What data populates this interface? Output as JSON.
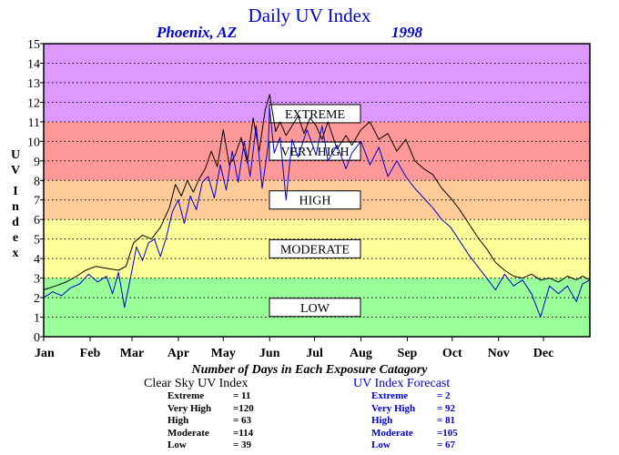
{
  "header": {
    "title": "Daily UV Index",
    "location": "Phoenix, AZ",
    "year": "1998"
  },
  "ylabel_letters": [
    "U",
    "V",
    "I",
    "n",
    "d",
    "e",
    "x"
  ],
  "categories": [
    {
      "label": "EXTREME",
      "min": 11,
      "max": 15,
      "color": "#dd99ff"
    },
    {
      "label": "VERY HIGH",
      "min": 8,
      "max": 11,
      "color": "#ff9999"
    },
    {
      "label": "HIGH",
      "min": 6,
      "max": 8,
      "color": "#ffcc99"
    },
    {
      "label": "MODERATE",
      "min": 3,
      "max": 6,
      "color": "#ffff99"
    },
    {
      "label": "LOW",
      "min": 0,
      "max": 3,
      "color": "#99ff99"
    }
  ],
  "chart_data": {
    "type": "line",
    "title": "Daily UV Index",
    "ylim": [
      0,
      15
    ],
    "yticks": [
      0,
      1,
      2,
      3,
      4,
      5,
      6,
      7,
      8,
      9,
      10,
      11,
      12,
      13,
      14,
      15
    ],
    "xlim": [
      0,
      365
    ],
    "x_tick_labels": [
      "Jan",
      "Feb",
      "Mar",
      "Apr",
      "May",
      "Jun",
      "Jul",
      "Aug",
      "Sep",
      "Oct",
      "Nov",
      "Dec"
    ],
    "x_tick_days": [
      0,
      31,
      59,
      90,
      120,
      151,
      181,
      212,
      243,
      273,
      304,
      334
    ],
    "grid": "horizontal dotted",
    "series": [
      {
        "name": "Clear Sky UV Index",
        "color": "#000000",
        "x": [
          0,
          8,
          15,
          22,
          28,
          35,
          42,
          50,
          55,
          60,
          66,
          72,
          78,
          84,
          88,
          92,
          96,
          100,
          104,
          108,
          112,
          116,
          120,
          124,
          128,
          132,
          136,
          140,
          144,
          148,
          151,
          155,
          158,
          162,
          166,
          170,
          174,
          178,
          182,
          186,
          190,
          196,
          202,
          206,
          212,
          218,
          224,
          230,
          236,
          242,
          248,
          254,
          260,
          266,
          272,
          278,
          284,
          290,
          296,
          302,
          308,
          314,
          320,
          326,
          332,
          338,
          344,
          350,
          356,
          360,
          365
        ],
        "y": [
          2.4,
          2.6,
          2.8,
          3.1,
          3.4,
          3.6,
          3.5,
          3.4,
          3.6,
          4.8,
          5.2,
          5.0,
          5.6,
          6.6,
          7.8,
          7.2,
          8.0,
          7.4,
          8.1,
          8.6,
          9.5,
          8.7,
          10.6,
          8.8,
          9.3,
          10.2,
          8.9,
          11.2,
          9.5,
          11.6,
          12.4,
          10.5,
          11.0,
          10.3,
          10.8,
          11.3,
          10.4,
          11.2,
          10.8,
          10.1,
          11.0,
          9.6,
          10.3,
          9.8,
          10.6,
          11.0,
          10.1,
          10.4,
          9.5,
          10.1,
          9.0,
          8.6,
          8.3,
          7.6,
          7.1,
          6.5,
          5.8,
          5.1,
          4.5,
          3.8,
          3.4,
          3.1,
          3.0,
          3.2,
          2.9,
          3.0,
          2.8,
          3.1,
          2.9,
          3.1,
          2.9
        ]
      },
      {
        "name": "UV Index Forecast",
        "color": "#0000cc",
        "x": [
          0,
          6,
          12,
          18,
          24,
          30,
          36,
          42,
          46,
          50,
          54,
          58,
          62,
          66,
          70,
          74,
          78,
          82,
          86,
          90,
          94,
          98,
          102,
          106,
          110,
          114,
          118,
          122,
          126,
          130,
          134,
          138,
          142,
          146,
          150,
          151,
          154,
          158,
          162,
          166,
          170,
          176,
          182,
          186,
          190,
          196,
          202,
          206,
          212,
          218,
          224,
          230,
          236,
          242,
          248,
          254,
          260,
          266,
          272,
          278,
          284,
          290,
          296,
          302,
          308,
          314,
          320,
          326,
          332,
          338,
          344,
          350,
          356,
          360,
          365
        ],
        "y": [
          2.0,
          2.3,
          2.1,
          2.5,
          2.7,
          3.2,
          2.8,
          3.1,
          2.2,
          3.3,
          1.5,
          3.0,
          4.6,
          3.9,
          4.8,
          5.0,
          4.1,
          5.1,
          6.4,
          7.0,
          5.8,
          7.2,
          6.5,
          7.9,
          8.2,
          7.1,
          8.8,
          7.5,
          9.5,
          7.9,
          10.0,
          8.2,
          10.8,
          7.6,
          9.8,
          11.7,
          9.4,
          10.2,
          7.0,
          10.1,
          9.2,
          10.6,
          9.3,
          10.8,
          9.0,
          9.8,
          8.6,
          9.4,
          10.0,
          8.8,
          9.7,
          8.2,
          9.0,
          8.2,
          7.6,
          7.1,
          6.6,
          6.0,
          5.6,
          4.9,
          4.2,
          3.6,
          3.0,
          2.4,
          3.2,
          2.6,
          2.9,
          2.2,
          1.0,
          2.6,
          2.2,
          2.6,
          1.8,
          2.7,
          2.9
        ]
      }
    ]
  },
  "summary": {
    "title": "Number of Days in Each Exposure Catagory",
    "clear_sky": {
      "title": "Clear Sky UV Index",
      "rows": [
        {
          "label": "Extreme",
          "value": "= 11"
        },
        {
          "label": "Very High",
          "value": "=120"
        },
        {
          "label": "High",
          "value": "= 63"
        },
        {
          "label": "Moderate",
          "value": "=114"
        },
        {
          "label": "Low",
          "value": "= 39"
        }
      ]
    },
    "forecast": {
      "title": "UV Index Forecast",
      "rows": [
        {
          "label": "Extreme",
          "value": "= 2"
        },
        {
          "label": "Very High",
          "value": "= 92"
        },
        {
          "label": "High",
          "value": "= 81"
        },
        {
          "label": "Moderate",
          "value": "=105"
        },
        {
          "label": "Low",
          "value": "= 67"
        }
      ]
    }
  }
}
